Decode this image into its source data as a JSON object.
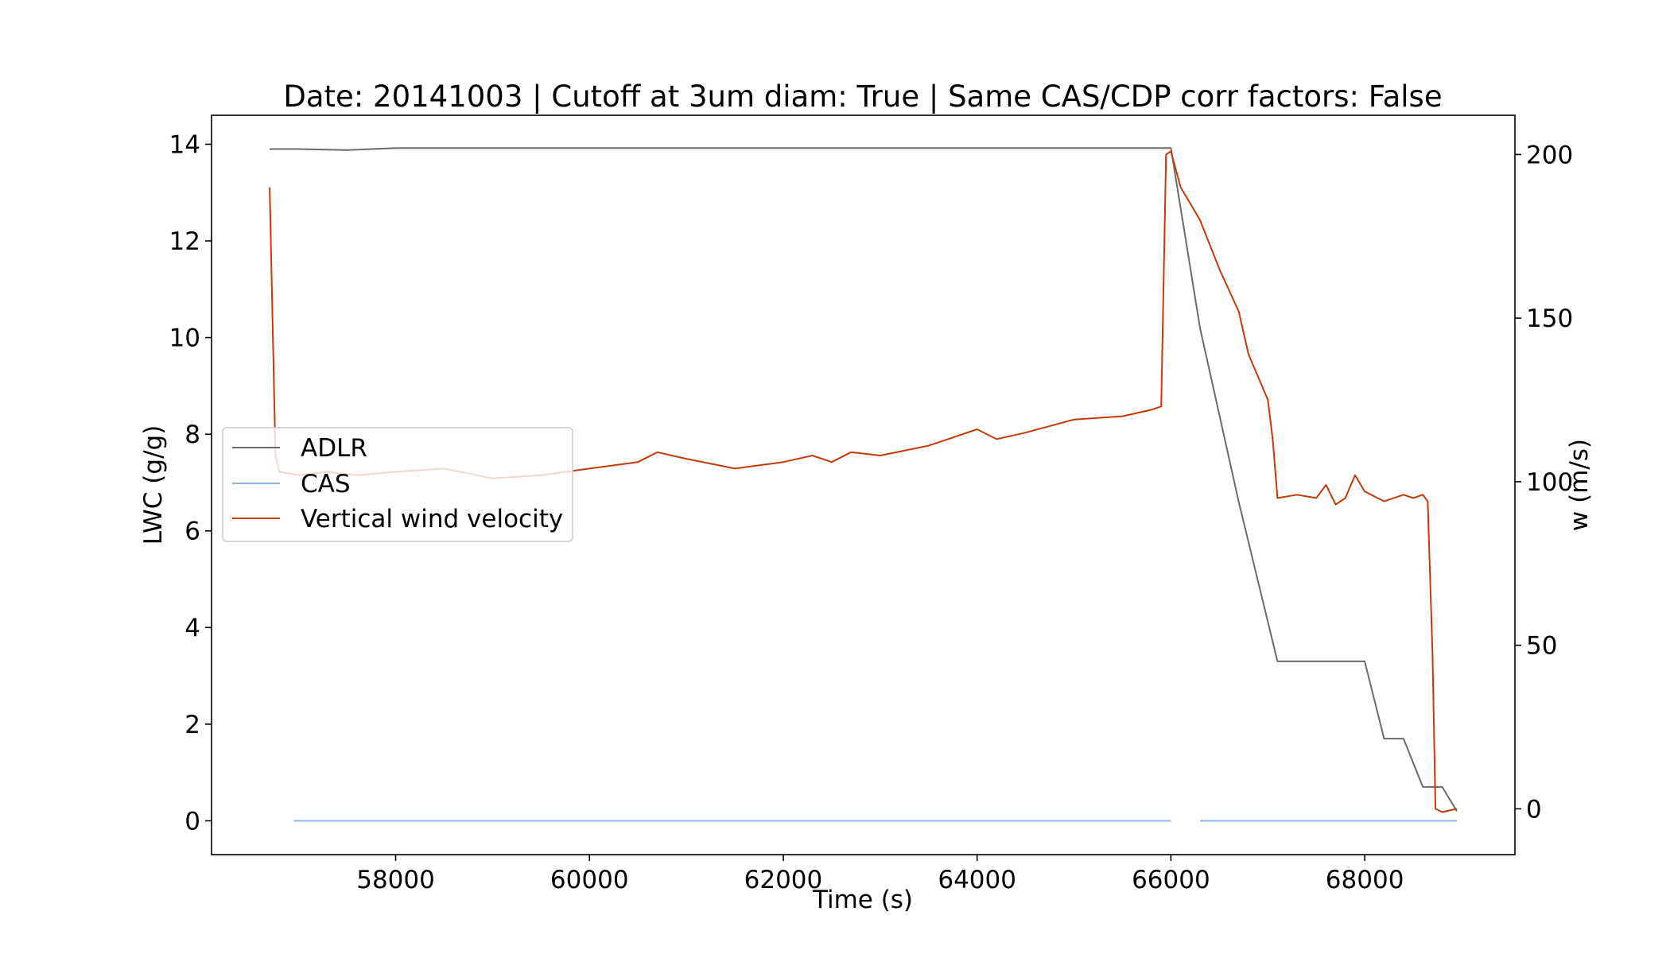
{
  "chart_data": {
    "type": "line",
    "title": "Date: 20141003 | Cutoff at 3um diam: True | Same CAS/CDP corr factors: False",
    "xlabel": "Time (s)",
    "ylabel": "LWC (g/g)",
    "y2label": "w (m/s)",
    "xlim": [
      56100,
      69550
    ],
    "ylim": [
      -0.7,
      14.6
    ],
    "y2lim": [
      -14,
      212
    ],
    "xticks": [
      58000,
      60000,
      62000,
      64000,
      66000,
      68000
    ],
    "yticks": [
      0,
      2,
      4,
      6,
      8,
      10,
      12,
      14
    ],
    "y2ticks": [
      0,
      50,
      100,
      150,
      200
    ],
    "grid": false,
    "legend": "center-left",
    "series": [
      {
        "name": "ADLR",
        "axis": "left",
        "color": "#6b6b6b",
        "x": [
          56700,
          57000,
          57500,
          58000,
          60000,
          62000,
          64000,
          66000,
          66300,
          66700,
          67100,
          67500,
          67800,
          67900,
          68000,
          68200,
          68400,
          68600,
          68800,
          68950
        ],
        "y": [
          13.9,
          13.9,
          13.88,
          13.92,
          13.92,
          13.92,
          13.92,
          13.92,
          10.2,
          6.6,
          3.3,
          3.3,
          3.3,
          3.3,
          3.3,
          1.7,
          1.7,
          0.7,
          0.7,
          0.2
        ]
      },
      {
        "name": "CAS",
        "axis": "left",
        "color": "#8fb4e3",
        "x": [
          56950,
          66000,
          null,
          66300,
          68950
        ],
        "y": [
          0,
          0,
          null,
          0,
          0
        ]
      },
      {
        "name": "Vertical wind velocity",
        "axis": "right",
        "color": "#c23b0a",
        "x": [
          56700,
          56760,
          56800,
          57000,
          57300,
          57600,
          58000,
          58500,
          59000,
          59500,
          60000,
          60500,
          60700,
          61000,
          61500,
          62000,
          62300,
          62500,
          62700,
          63000,
          63500,
          64000,
          64200,
          64500,
          65000,
          65500,
          65800,
          65900,
          65950,
          66000,
          66100,
          66300,
          66500,
          66700,
          66800,
          67000,
          67050,
          67100,
          67300,
          67500,
          67600,
          67700,
          67800,
          67900,
          68000,
          68200,
          68400,
          68500,
          68600,
          68650,
          68700,
          68730,
          68800,
          68950
        ],
        "y": [
          190,
          108,
          103,
          102,
          103,
          102,
          103,
          104,
          101,
          102,
          104,
          106,
          109,
          107,
          104,
          106,
          108,
          106,
          109,
          108,
          111,
          116,
          113,
          115,
          119,
          120,
          122,
          123,
          200,
          201,
          190,
          180,
          165,
          152,
          139,
          125,
          113,
          95,
          96,
          95,
          99,
          93,
          95,
          102,
          97,
          94,
          96,
          95,
          96,
          94,
          47,
          0,
          -1,
          0
        ]
      }
    ]
  }
}
